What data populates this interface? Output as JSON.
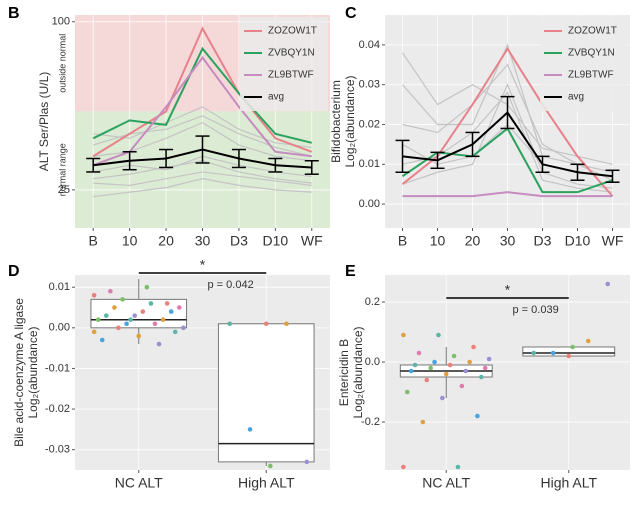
{
  "chart_data": [
    {
      "type": "line",
      "panel": "B",
      "ylabel": "ALT Ser/Plas (U/L)",
      "annotations": [
        "outside normal",
        "normal range"
      ],
      "normal_limit": 60,
      "shade_colors": [
        "#f5d8d8",
        "#dcebd3"
      ],
      "categories": [
        "B",
        "10",
        "20",
        "30",
        "D3",
        "D10",
        "WF"
      ],
      "ylim": [
        8,
        103
      ],
      "yticks": [
        25,
        100
      ],
      "grid": true,
      "legend": "top-right",
      "series": [
        {
          "color": "#c4c4c4",
          "values": [
            30,
            32,
            35,
            38,
            33,
            30,
            28
          ]
        },
        {
          "color": "#c4c4c4",
          "values": [
            45,
            50,
            52,
            58,
            50,
            44,
            40
          ]
        },
        {
          "color": "#c4c4c4",
          "values": [
            28,
            27,
            30,
            33,
            31,
            29,
            27
          ]
        },
        {
          "color": "#c4c4c4",
          "values": [
            40,
            42,
            48,
            55,
            45,
            40,
            38
          ]
        },
        {
          "color": "#c4c4c4",
          "values": [
            22,
            24,
            26,
            30,
            27,
            25,
            24
          ]
        },
        {
          "color": "#c4c4c4",
          "values": [
            33,
            36,
            34,
            40,
            36,
            33,
            31
          ]
        },
        {
          "color": "#c4c4c4",
          "values": [
            50,
            48,
            55,
            62,
            52,
            46,
            44
          ]
        },
        {
          "name": "ZOZOW1T",
          "color": "#e8828a",
          "values": [
            40,
            50,
            60,
            97,
            68,
            48,
            42
          ]
        },
        {
          "name": "ZVBQY1N",
          "color": "#2ca25f",
          "values": [
            48,
            56,
            54,
            88,
            68,
            50,
            46
          ]
        },
        {
          "name": "ZL9BTWF",
          "color": "#c68cc0",
          "values": [
            36,
            42,
            62,
            84,
            62,
            42,
            40
          ]
        },
        {
          "name": "avg",
          "color": "#000000",
          "values": [
            36,
            38,
            39,
            43,
            39,
            36,
            35
          ],
          "errors": [
            3,
            4,
            4,
            6,
            4,
            3,
            3
          ]
        }
      ]
    },
    {
      "type": "line",
      "panel": "C",
      "ylabel": [
        "Bifidobacterium",
        "Log₂(abundance)"
      ],
      "categories": [
        "B",
        "10",
        "20",
        "30",
        "D3",
        "D10",
        "WF"
      ],
      "ylim": [
        -0.006,
        0.0475
      ],
      "yticks": [
        {
          "value": 0,
          "label": "0.00"
        },
        0.01,
        0.02,
        0.03,
        0.04
      ],
      "grid": true,
      "legend": "top-right",
      "series": [
        {
          "color": "#c4c4c4",
          "values": [
            0.02,
            0.018,
            0.025,
            0.035,
            0.015,
            0.01,
            0.008
          ]
        },
        {
          "color": "#c4c4c4",
          "values": [
            0.005,
            0.008,
            0.01,
            0.03,
            0.008,
            0.005,
            0.004
          ]
        },
        {
          "color": "#c4c4c4",
          "values": [
            0.03,
            0.02,
            0.02,
            0.04,
            0.012,
            0.01,
            0.006
          ]
        },
        {
          "color": "#c4c4c4",
          "values": [
            0.01,
            0.012,
            0.018,
            0.028,
            0.006,
            0.004,
            0.003
          ]
        },
        {
          "color": "#c4c4c4",
          "values": [
            0.015,
            0.01,
            0.012,
            0.02,
            0.01,
            0.008,
            0.007
          ]
        },
        {
          "color": "#c4c4c4",
          "values": [
            0.038,
            0.025,
            0.03,
            0.025,
            0.014,
            0.012,
            0.01
          ]
        },
        {
          "name": "ZOZOW1T",
          "color": "#e8828a",
          "values": [
            0.005,
            0.012,
            0.025,
            0.039,
            0.025,
            0.012,
            0.002
          ]
        },
        {
          "name": "ZVBQY1N",
          "color": "#2ca25f",
          "values": [
            0.007,
            0.013,
            0.012,
            0.019,
            0.003,
            0.003,
            0.006
          ]
        },
        {
          "name": "ZL9BTWF",
          "color": "#c68cc0",
          "values": [
            0.002,
            0.002,
            0.002,
            0.003,
            0.002,
            0.002,
            0.002
          ]
        },
        {
          "name": "avg",
          "color": "#000000",
          "values": [
            0.012,
            0.011,
            0.015,
            0.023,
            0.01,
            0.008,
            0.007
          ],
          "errors": [
            0.004,
            0.002,
            0.003,
            0.004,
            0.002,
            0.002,
            0.0015
          ]
        }
      ]
    },
    {
      "type": "box",
      "panel": "D",
      "ylabel": [
        "Bile acid-coenzyme A ligase",
        "Log₂(abundance)"
      ],
      "categories": [
        "NC ALT",
        "High ALT"
      ],
      "ylim": [
        -0.035,
        0.013
      ],
      "yticks": [
        0.01,
        {
          "value": 0,
          "label": "0.00"
        },
        -0.01,
        -0.02,
        -0.03
      ],
      "grid": true,
      "significance": "*",
      "p_text": "p = 0.042",
      "boxes": [
        {
          "min": -0.004,
          "q1": 0.0,
          "median": 0.002,
          "q3": 0.007,
          "max": 0.012
        },
        {
          "min": -0.034,
          "q1": -0.033,
          "median": -0.0285,
          "q3": 0.001,
          "max": 0.001
        }
      ],
      "point_colors": [
        "#e8837b",
        "#5bb5a8",
        "#e0a040",
        "#4aa3df",
        "#9b8fd0",
        "#7cbf6a",
        "#e07ab0"
      ],
      "points": [
        [
          0.008,
          0.006,
          0.005,
          0.004,
          0.003,
          0.002,
          0.001,
          0.0,
          -0.001,
          -0.002,
          -0.003,
          -0.004,
          0.007,
          0.005,
          0.004,
          0.003,
          0.002,
          0.001,
          0.0,
          0.01,
          0.009,
          0.006,
          0.002,
          -0.001
        ],
        [
          0.001,
          0.001,
          0.001,
          -0.025,
          -0.033,
          -0.034
        ]
      ]
    },
    {
      "type": "box",
      "panel": "E",
      "ylabel": [
        "Entericidin B",
        "Log₂(abundance)"
      ],
      "categories": [
        "NC ALT",
        "High ALT"
      ],
      "ylim": [
        -0.36,
        0.29
      ],
      "yticks": [
        0.2,
        {
          "value": 0,
          "label": "0.0"
        },
        -0.2
      ],
      "grid": true,
      "significance": "*",
      "p_text": "p = 0.039",
      "boxes": [
        {
          "min": -0.12,
          "q1": -0.05,
          "median": -0.03,
          "q3": -0.01,
          "max": 0.05
        },
        {
          "min": 0.02,
          "q1": 0.02,
          "median": 0.03,
          "q3": 0.05,
          "max": 0.05
        }
      ],
      "point_colors": [
        "#e8837b",
        "#5bb5a8",
        "#e0a040",
        "#4aa3df",
        "#9b8fd0",
        "#7cbf6a",
        "#e07ab0"
      ],
      "points": [
        [
          -0.35,
          -0.35,
          -0.2,
          -0.18,
          -0.12,
          -0.1,
          -0.08,
          -0.06,
          -0.05,
          -0.04,
          -0.03,
          -0.03,
          -0.02,
          -0.02,
          -0.01,
          -0.01,
          0.0,
          0.0,
          0.01,
          0.02,
          0.03,
          0.05,
          0.09,
          0.09
        ],
        [
          0.02,
          0.03,
          0.07,
          0.03,
          0.26,
          0.05
        ]
      ]
    }
  ]
}
